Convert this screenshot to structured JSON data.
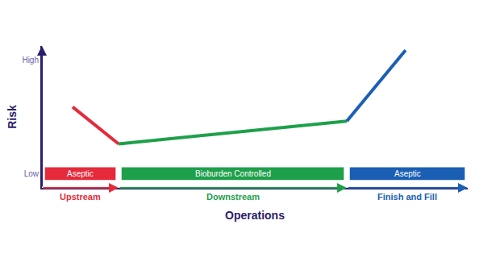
{
  "chart_data": {
    "type": "line",
    "x_label": "Operations",
    "y_label": "Risk",
    "x": [
      7.2,
      18,
      71.6,
      85.4
    ],
    "xlim": [
      0,
      100
    ],
    "xticks": [],
    "ylim": [
      0,
      10
    ],
    "yticks": [
      {
        "value": 1,
        "label": "Low"
      },
      {
        "value": 9,
        "label": "High"
      }
    ],
    "tick_labels": "y",
    "grid": false,
    "series": [
      {
        "name": "Upstream",
        "color": "#e62a3c",
        "values": [
          5.7,
          3.1,
          null,
          null
        ]
      },
      {
        "name": "Downstream",
        "color": "#1ea04b",
        "values": [
          null,
          3.1,
          4.7,
          null
        ]
      },
      {
        "name": "Finish and Fill",
        "color": "#1a5fb4",
        "values": [
          null,
          null,
          4.7,
          9.7
        ]
      }
    ],
    "phases": [
      {
        "start": 0,
        "end": 18,
        "band": "Aseptic"
      },
      {
        "start": 18,
        "end": 71.6,
        "band": "Bioburden Controlled"
      },
      {
        "start": 71.6,
        "end": 100,
        "band": "Aseptic"
      }
    ]
  }
}
